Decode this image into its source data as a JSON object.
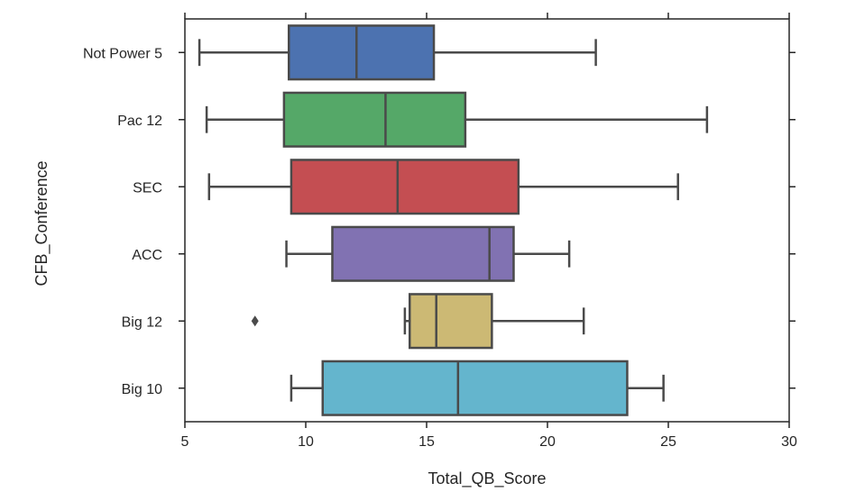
{
  "chart_data": {
    "type": "boxplot",
    "orientation": "horizontal",
    "xlabel": "Total_QB_Score",
    "ylabel": "CFB_Conference",
    "xlim": [
      5,
      30
    ],
    "xticks": [
      5,
      10,
      15,
      20,
      25,
      30
    ],
    "grid": false,
    "categories": [
      "Not Power 5",
      "Pac 12",
      "SEC",
      "ACC",
      "Big 12",
      "Big 10"
    ],
    "series": [
      {
        "category": "Not Power 5",
        "color": "#4c72b0",
        "whisker_low": 5.6,
        "q1": 9.3,
        "median": 12.1,
        "q3": 15.3,
        "whisker_high": 22.0,
        "outliers": []
      },
      {
        "category": "Pac 12",
        "color": "#55a868",
        "whisker_low": 5.9,
        "q1": 9.1,
        "median": 13.3,
        "q3": 16.6,
        "whisker_high": 26.6,
        "outliers": []
      },
      {
        "category": "SEC",
        "color": "#c44e52",
        "whisker_low": 6.0,
        "q1": 9.4,
        "median": 13.8,
        "q3": 18.8,
        "whisker_high": 25.4,
        "outliers": []
      },
      {
        "category": "ACC",
        "color": "#8172b2",
        "whisker_low": 9.2,
        "q1": 11.1,
        "median": 17.6,
        "q3": 18.6,
        "whisker_high": 20.9,
        "outliers": []
      },
      {
        "category": "Big 12",
        "color": "#ccb974",
        "whisker_low": 14.1,
        "q1": 14.3,
        "median": 15.4,
        "q3": 17.7,
        "whisker_high": 21.5,
        "outliers": [
          7.9
        ]
      },
      {
        "category": "Big 10",
        "color": "#64b5cd",
        "whisker_low": 9.4,
        "q1": 10.7,
        "median": 16.3,
        "q3": 23.3,
        "whisker_high": 24.8,
        "outliers": []
      }
    ]
  }
}
